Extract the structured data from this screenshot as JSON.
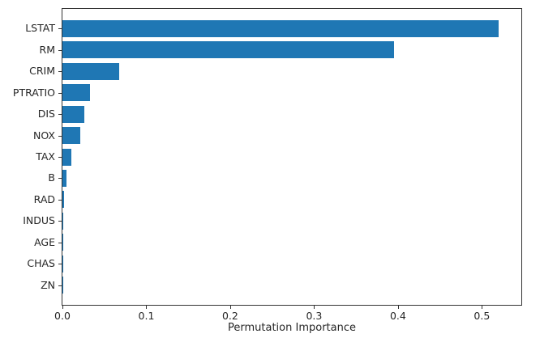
{
  "figure": {
    "background": "#ffffff",
    "bar_color": "#1f77b4",
    "axis_color": "#333333",
    "text_color": "#262626"
  },
  "chart_data": {
    "type": "bar",
    "orientation": "horizontal",
    "title": "",
    "xlabel": "Permutation Importance",
    "ylabel": "",
    "categories": [
      "LSTAT",
      "RM",
      "CRIM",
      "PTRATIO",
      "DIS",
      "NOX",
      "TAX",
      "B",
      "RAD",
      "INDUS",
      "AGE",
      "CHAS",
      "ZN"
    ],
    "values": [
      0.52,
      0.395,
      0.068,
      0.033,
      0.026,
      0.021,
      0.011,
      0.005,
      0.002,
      0.001,
      0.0005,
      0.0002,
      0.0001
    ],
    "xlim": [
      0,
      0.547
    ],
    "xticks": [
      "0.0",
      "0.1",
      "0.2",
      "0.3",
      "0.4",
      "0.5"
    ],
    "xtick_values": [
      0,
      0.1,
      0.2,
      0.3,
      0.4,
      0.5
    ],
    "grid": false,
    "legend_position": "none"
  }
}
